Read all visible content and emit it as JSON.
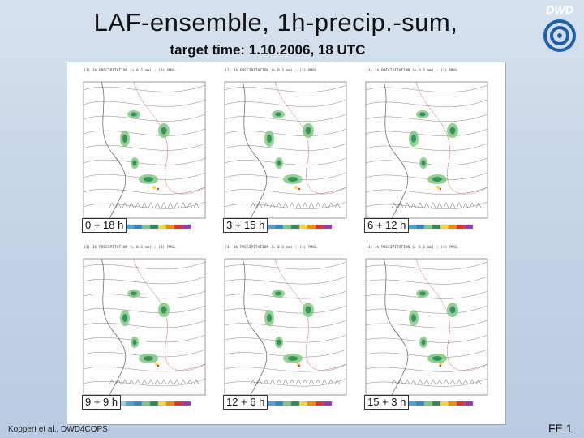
{
  "title": "LAF-ensemble, 1h-precip.-sum,",
  "subtitle": "target time: 1.10.2006, 18 UTC",
  "logo": {
    "text": "DWD",
    "icon": "dwd-spiral-icon"
  },
  "panels": [
    {
      "label": "0 + 18 h"
    },
    {
      "label": "3 + 15 h"
    },
    {
      "label": "6 + 12 h"
    },
    {
      "label": "9 + 9 h"
    },
    {
      "label": "12 + 6 h"
    },
    {
      "label": "15 + 3 h"
    }
  ],
  "panel_header": "(1) 1h PRECIPITATION (> 0.1 mm) ; (3) PMSL",
  "footer": {
    "author": "Koppert et al., DWD4COPS",
    "slide": "FE 1"
  },
  "colors": {
    "background": "#c7d6e8",
    "precip_light": "#7fc97f",
    "precip_mid": "#2e8b57",
    "precip_heavy": "#ffd43b",
    "precip_extreme": "#e03131"
  }
}
